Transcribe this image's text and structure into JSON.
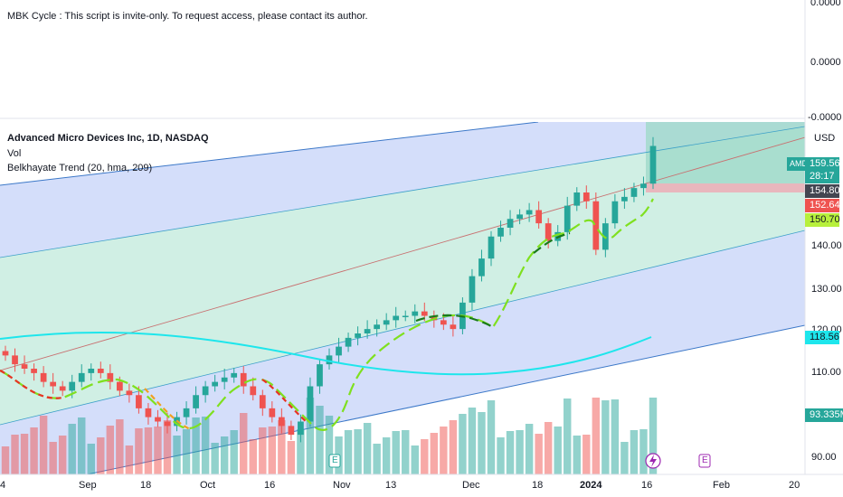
{
  "indicator_pane": {
    "notice": "MBK Cycle : This script is invite-only. To request access, please contact its author.",
    "axis_labels": [
      "0.0000",
      "0.0000",
      "-0.0000"
    ]
  },
  "legend": {
    "title": "Advanced Micro Devices Inc, 1D, NASDAQ",
    "vol": "Vol",
    "trend": "Belkhayate Trend (20, hma, 209)"
  },
  "price_axis": {
    "currency": "USD",
    "ticks": [
      "140.00",
      "130.00",
      "120.00",
      "110.00",
      "90.00"
    ]
  },
  "badges": {
    "symbol": "AMD",
    "last_price": "159.56",
    "countdown": "28:17",
    "level_1": "154.80",
    "level_2": "152.64",
    "level_3": "150.70",
    "level_4": "118.56",
    "volume": "93.335M"
  },
  "time_axis": {
    "labels": [
      "4",
      "Sep",
      "18",
      "Oct",
      "16",
      "Nov",
      "13",
      "Dec",
      "18",
      "2024",
      "16",
      "Feb",
      "20"
    ]
  },
  "events": [
    "E",
    "E"
  ],
  "colors": {
    "up": "#26a69a",
    "down": "#ef5350",
    "band_blue": "#d2dcfa",
    "band_green": "#cdeee0",
    "cycle": "#1ee6ec",
    "trend_up": "#7fe01f",
    "trend_down": "#e83324",
    "trend_dark": "#1a7a1a",
    "trend_orange": "#f0a020",
    "channel_line": "#3c78c8",
    "mid_line": "#c87070",
    "accent_green": "#b7f03c"
  },
  "chart_data": {
    "type": "candlestick",
    "symbol": "AMD",
    "price_range": [
      85,
      165
    ],
    "candles_close_approx": [
      112,
      110,
      109,
      108,
      106,
      105,
      104,
      106,
      108,
      109,
      108,
      106,
      104,
      103,
      100,
      98,
      97,
      96,
      98,
      100,
      103,
      105,
      106,
      107,
      108,
      105,
      103,
      100,
      98,
      96,
      94,
      97,
      105,
      110,
      112,
      114,
      116,
      117,
      118,
      119,
      120,
      121,
      121,
      122,
      121,
      120,
      119,
      118,
      124,
      130,
      134,
      139,
      141,
      143,
      144,
      145,
      142,
      138,
      140,
      146,
      149,
      147,
      136,
      142,
      147,
      148,
      150,
      151,
      159.56
    ]
  }
}
